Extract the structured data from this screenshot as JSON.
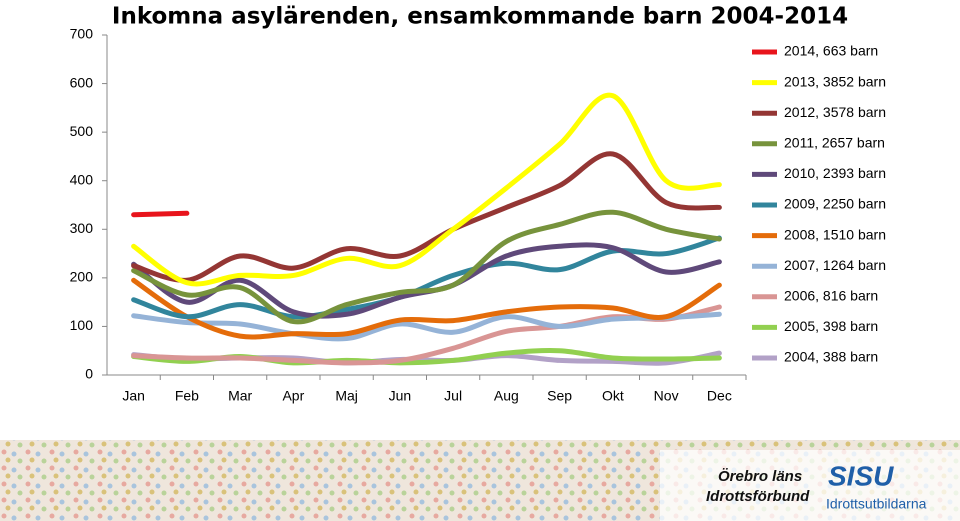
{
  "chart_data": {
    "type": "line",
    "title": "Inkomna asylärenden, ensamkommande barn 2004-2014",
    "categories": [
      "Jan",
      "Feb",
      "Mar",
      "Apr",
      "Maj",
      "Jun",
      "Jul",
      "Aug",
      "Sep",
      "Okt",
      "Nov",
      "Dec"
    ],
    "ylim": [
      0,
      700
    ],
    "yticks": [
      0,
      100,
      200,
      300,
      400,
      500,
      600,
      700
    ],
    "grid": false,
    "legend": "right",
    "smooth": true,
    "series": [
      {
        "name": "2014, 663 barn",
        "color": "#e8141c",
        "values": [
          330,
          333,
          null,
          null,
          null,
          null,
          null,
          null,
          null,
          null,
          null,
          null
        ]
      },
      {
        "name": "2013, 3852 barn",
        "color": "#ffff00",
        "values": [
          265,
          190,
          205,
          205,
          240,
          225,
          300,
          385,
          475,
          575,
          400,
          392
        ]
      },
      {
        "name": "2012, 3578 barn",
        "color": "#943634",
        "values": [
          225,
          195,
          245,
          220,
          260,
          245,
          300,
          345,
          390,
          455,
          355,
          345
        ]
      },
      {
        "name": "2011, 2657 barn",
        "color": "#77933c",
        "values": [
          215,
          165,
          180,
          110,
          145,
          170,
          185,
          275,
          310,
          335,
          300,
          280
        ]
      },
      {
        "name": "2010, 2393 barn",
        "color": "#5f497a",
        "values": [
          228,
          150,
          195,
          130,
          125,
          160,
          185,
          245,
          265,
          262,
          212,
          233
        ]
      },
      {
        "name": "2009, 2250 barn",
        "color": "#31859c",
        "values": [
          155,
          120,
          145,
          120,
          135,
          160,
          205,
          230,
          217,
          255,
          250,
          282
        ]
      },
      {
        "name": "2008, 1510 barn",
        "color": "#e46c0a",
        "values": [
          195,
          120,
          80,
          85,
          85,
          113,
          112,
          130,
          140,
          138,
          120,
          185
        ]
      },
      {
        "name": "2007, 1264 barn",
        "color": "#95b3d7",
        "values": [
          122,
          108,
          105,
          85,
          75,
          105,
          88,
          120,
          100,
          115,
          118,
          125
        ]
      },
      {
        "name": "2006, 816 barn",
        "color": "#d99594",
        "values": [
          40,
          35,
          35,
          30,
          25,
          30,
          55,
          90,
          100,
          120,
          115,
          140
        ]
      },
      {
        "name": "2005, 398 barn",
        "color": "#92d050",
        "values": [
          38,
          28,
          38,
          25,
          30,
          25,
          30,
          45,
          50,
          35,
          33,
          35
        ]
      },
      {
        "name": "2004, 388 barn",
        "color": "#b2a1c7",
        "values": [
          42,
          33,
          35,
          35,
          25,
          32,
          30,
          40,
          30,
          28,
          25,
          45
        ]
      }
    ]
  },
  "footer": {
    "org1_line1": "Örebro läns",
    "org1_line2": "Idrottsförbund",
    "org2_name": "SISU",
    "org2_sub": "Idrottsutbildarna"
  }
}
